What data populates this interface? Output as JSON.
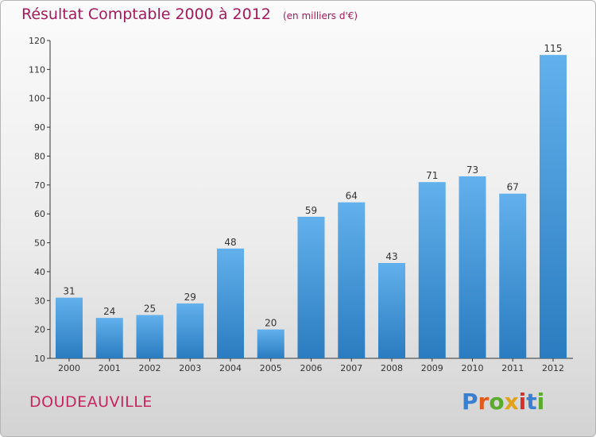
{
  "header": {
    "title": "Résultat Comptable 2000 à 2012",
    "subtitle": "(en milliers d'€)"
  },
  "footer": {
    "commune": "DOUDEAUVILLE",
    "brand": "Proxiti",
    "brand_colors": [
      "#3a7fd0",
      "#e25a1c",
      "#5aaa2c",
      "#e0a21a",
      "#d8302a",
      "#3a7fd0",
      "#5aaa2c"
    ]
  },
  "colors": {
    "bar_light": "#62b0ec",
    "bar_dark": "#2a7cc0",
    "title": "#a3195b",
    "commune": "#c8245f"
  },
  "chart_data": {
    "type": "bar",
    "title": "Résultat Comptable 2000 à 2012",
    "subtitle": "(en milliers d'€)",
    "categories": [
      "2000",
      "2001",
      "2002",
      "2003",
      "2004",
      "2005",
      "2006",
      "2007",
      "2008",
      "2009",
      "2010",
      "2011",
      "2012"
    ],
    "values": [
      31,
      24,
      25,
      29,
      48,
      20,
      59,
      64,
      43,
      71,
      73,
      67,
      115
    ],
    "ylim": [
      10,
      120
    ],
    "yticks": [
      10,
      20,
      30,
      40,
      50,
      60,
      70,
      80,
      90,
      100,
      110,
      120
    ],
    "grid": false,
    "legend": "none"
  }
}
